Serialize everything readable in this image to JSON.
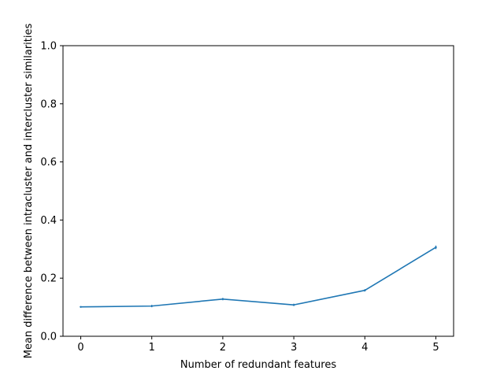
{
  "chart_data": {
    "type": "line",
    "title": "",
    "xlabel": "Number of redundant features",
    "ylabel": "Mean difference between intracluster and intercluster similarities",
    "xlim": [
      -0.25,
      5.25
    ],
    "ylim": [
      0.0,
      1.0
    ],
    "x_ticks": [
      "0",
      "1",
      "2",
      "3",
      "4",
      "5"
    ],
    "y_ticks": [
      "0.0",
      "0.2",
      "0.4",
      "0.6",
      "0.8",
      "1.0"
    ],
    "grid": false,
    "series": [
      {
        "color": "#1f77b4",
        "x": [
          0,
          1,
          2,
          3,
          4,
          5
        ],
        "y": [
          0.101,
          0.104,
          0.128,
          0.108,
          0.158,
          0.306
        ],
        "error": [
          0.003,
          0.004,
          0.004,
          0.004,
          0.004,
          0.006
        ]
      }
    ]
  }
}
